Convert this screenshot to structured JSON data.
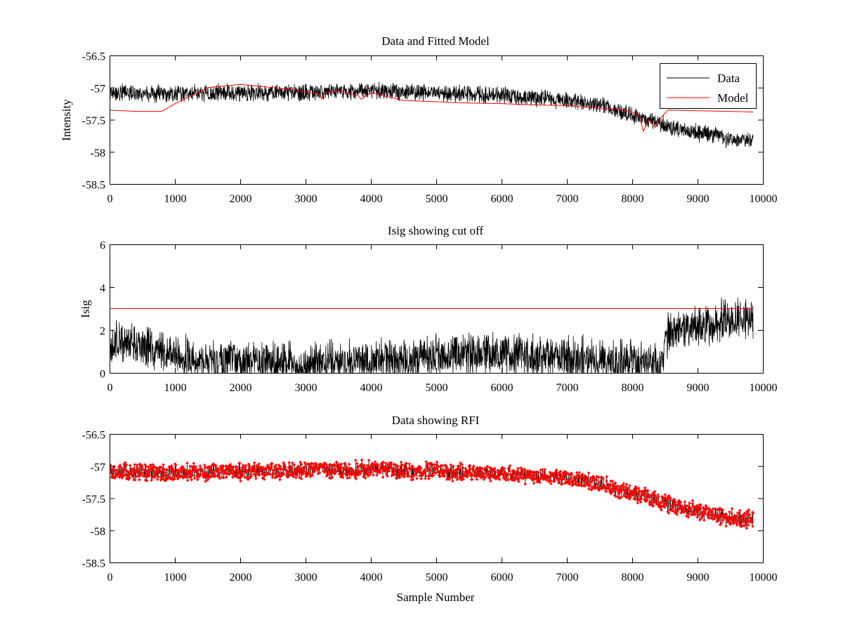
{
  "chart_data": [
    {
      "type": "line",
      "title": "Data and Fitted Model",
      "xlabel": "",
      "ylabel": "Intensity",
      "xlim": [
        0,
        10000
      ],
      "ylim": [
        -58.5,
        -56.5
      ],
      "xticks": [
        "0",
        "1000",
        "2000",
        "3000",
        "4000",
        "5000",
        "6000",
        "7000",
        "8000",
        "9000",
        "10000"
      ],
      "yticks": [
        "-56.5",
        "-57",
        "-57.5",
        "-58",
        "-58.5"
      ],
      "legend": {
        "placement": "top-right",
        "entries": [
          "Data",
          "Model"
        ]
      },
      "series": [
        {
          "name": "Data",
          "color": "#000000",
          "style": "noisy-line",
          "x_range": [
            0,
            9850
          ],
          "noise_amplitude": 0.12,
          "trend_x": [
            0,
            1000,
            2000,
            3000,
            4000,
            5000,
            6000,
            7000,
            7500,
            8000,
            8500,
            9000,
            9500,
            9850
          ],
          "trend_y": [
            -57.08,
            -57.1,
            -57.08,
            -57.07,
            -57.05,
            -57.08,
            -57.12,
            -57.2,
            -57.28,
            -57.42,
            -57.58,
            -57.7,
            -57.8,
            -57.83
          ]
        },
        {
          "name": "Model",
          "color": "#ff0000",
          "style": "line",
          "x": [
            0,
            400,
            800,
            1000,
            1500,
            2000,
            2500,
            2900,
            3200,
            3250,
            3300,
            3500,
            3800,
            3850,
            4000,
            4500,
            5000,
            5500,
            6000,
            6500,
            7000,
            7500,
            7900,
            8100,
            8170,
            8250,
            8350,
            8450,
            8550,
            9000,
            9500,
            9850
          ],
          "y": [
            -57.35,
            -57.37,
            -57.37,
            -57.25,
            -57.0,
            -56.95,
            -57.0,
            -57.05,
            -57.1,
            -57.18,
            -57.08,
            -57.05,
            -57.12,
            -57.18,
            -57.08,
            -57.2,
            -57.22,
            -57.24,
            -57.25,
            -57.27,
            -57.28,
            -57.32,
            -57.35,
            -57.42,
            -57.68,
            -57.5,
            -57.62,
            -57.45,
            -57.35,
            -57.36,
            -57.37,
            -57.38
          ]
        }
      ]
    },
    {
      "type": "line",
      "title": "Isig showing cut off",
      "xlabel": "",
      "ylabel": "Isig",
      "xlim": [
        0,
        10000
      ],
      "ylim": [
        0,
        6
      ],
      "xticks": [
        "0",
        "1000",
        "2000",
        "3000",
        "4000",
        "5000",
        "6000",
        "7000",
        "8000",
        "9000",
        "10000"
      ],
      "yticks": [
        "0",
        "2",
        "4",
        "6"
      ],
      "series": [
        {
          "name": "",
          "color": "#000000",
          "style": "noisy-line",
          "x_range": [
            0,
            9850
          ],
          "noise_amplitude": 0.9,
          "trend_x": [
            0,
            500,
            1000,
            1500,
            2000,
            3000,
            4000,
            5000,
            6000,
            7000,
            8000,
            8450,
            8550,
            9000,
            9500,
            9850
          ],
          "trend_y": [
            1.5,
            1.3,
            0.8,
            0.5,
            0.6,
            0.4,
            0.6,
            0.8,
            0.9,
            0.7,
            0.5,
            0.4,
            1.9,
            2.2,
            2.5,
            2.6
          ]
        },
        {
          "name": "",
          "color": "#ff0000",
          "style": "line",
          "x": [
            0,
            9850
          ],
          "y": [
            3,
            3
          ]
        }
      ]
    },
    {
      "type": "scatter",
      "title": "Data showing RFI",
      "xlabel": "Sample Number",
      "ylabel": "",
      "xlim": [
        0,
        10000
      ],
      "ylim": [
        -58.5,
        -56.5
      ],
      "xticks": [
        "0",
        "1000",
        "2000",
        "3000",
        "4000",
        "5000",
        "6000",
        "7000",
        "8000",
        "9000",
        "10000"
      ],
      "yticks": [
        "-56.5",
        "-57",
        "-57.5",
        "-58",
        "-58.5"
      ],
      "series": [
        {
          "name": "",
          "color": "#ff0000",
          "style": "markers",
          "x_range": [
            0,
            9850
          ],
          "noise_amplitude": 0.12,
          "trend_x": [
            0,
            1000,
            2000,
            3000,
            4000,
            5000,
            6000,
            7000,
            7500,
            8000,
            8500,
            9000,
            9500,
            9850
          ],
          "trend_y": [
            -57.08,
            -57.1,
            -57.08,
            -57.07,
            -57.05,
            -57.08,
            -57.12,
            -57.2,
            -57.28,
            -57.42,
            -57.58,
            -57.7,
            -57.8,
            -57.83
          ]
        }
      ]
    }
  ]
}
